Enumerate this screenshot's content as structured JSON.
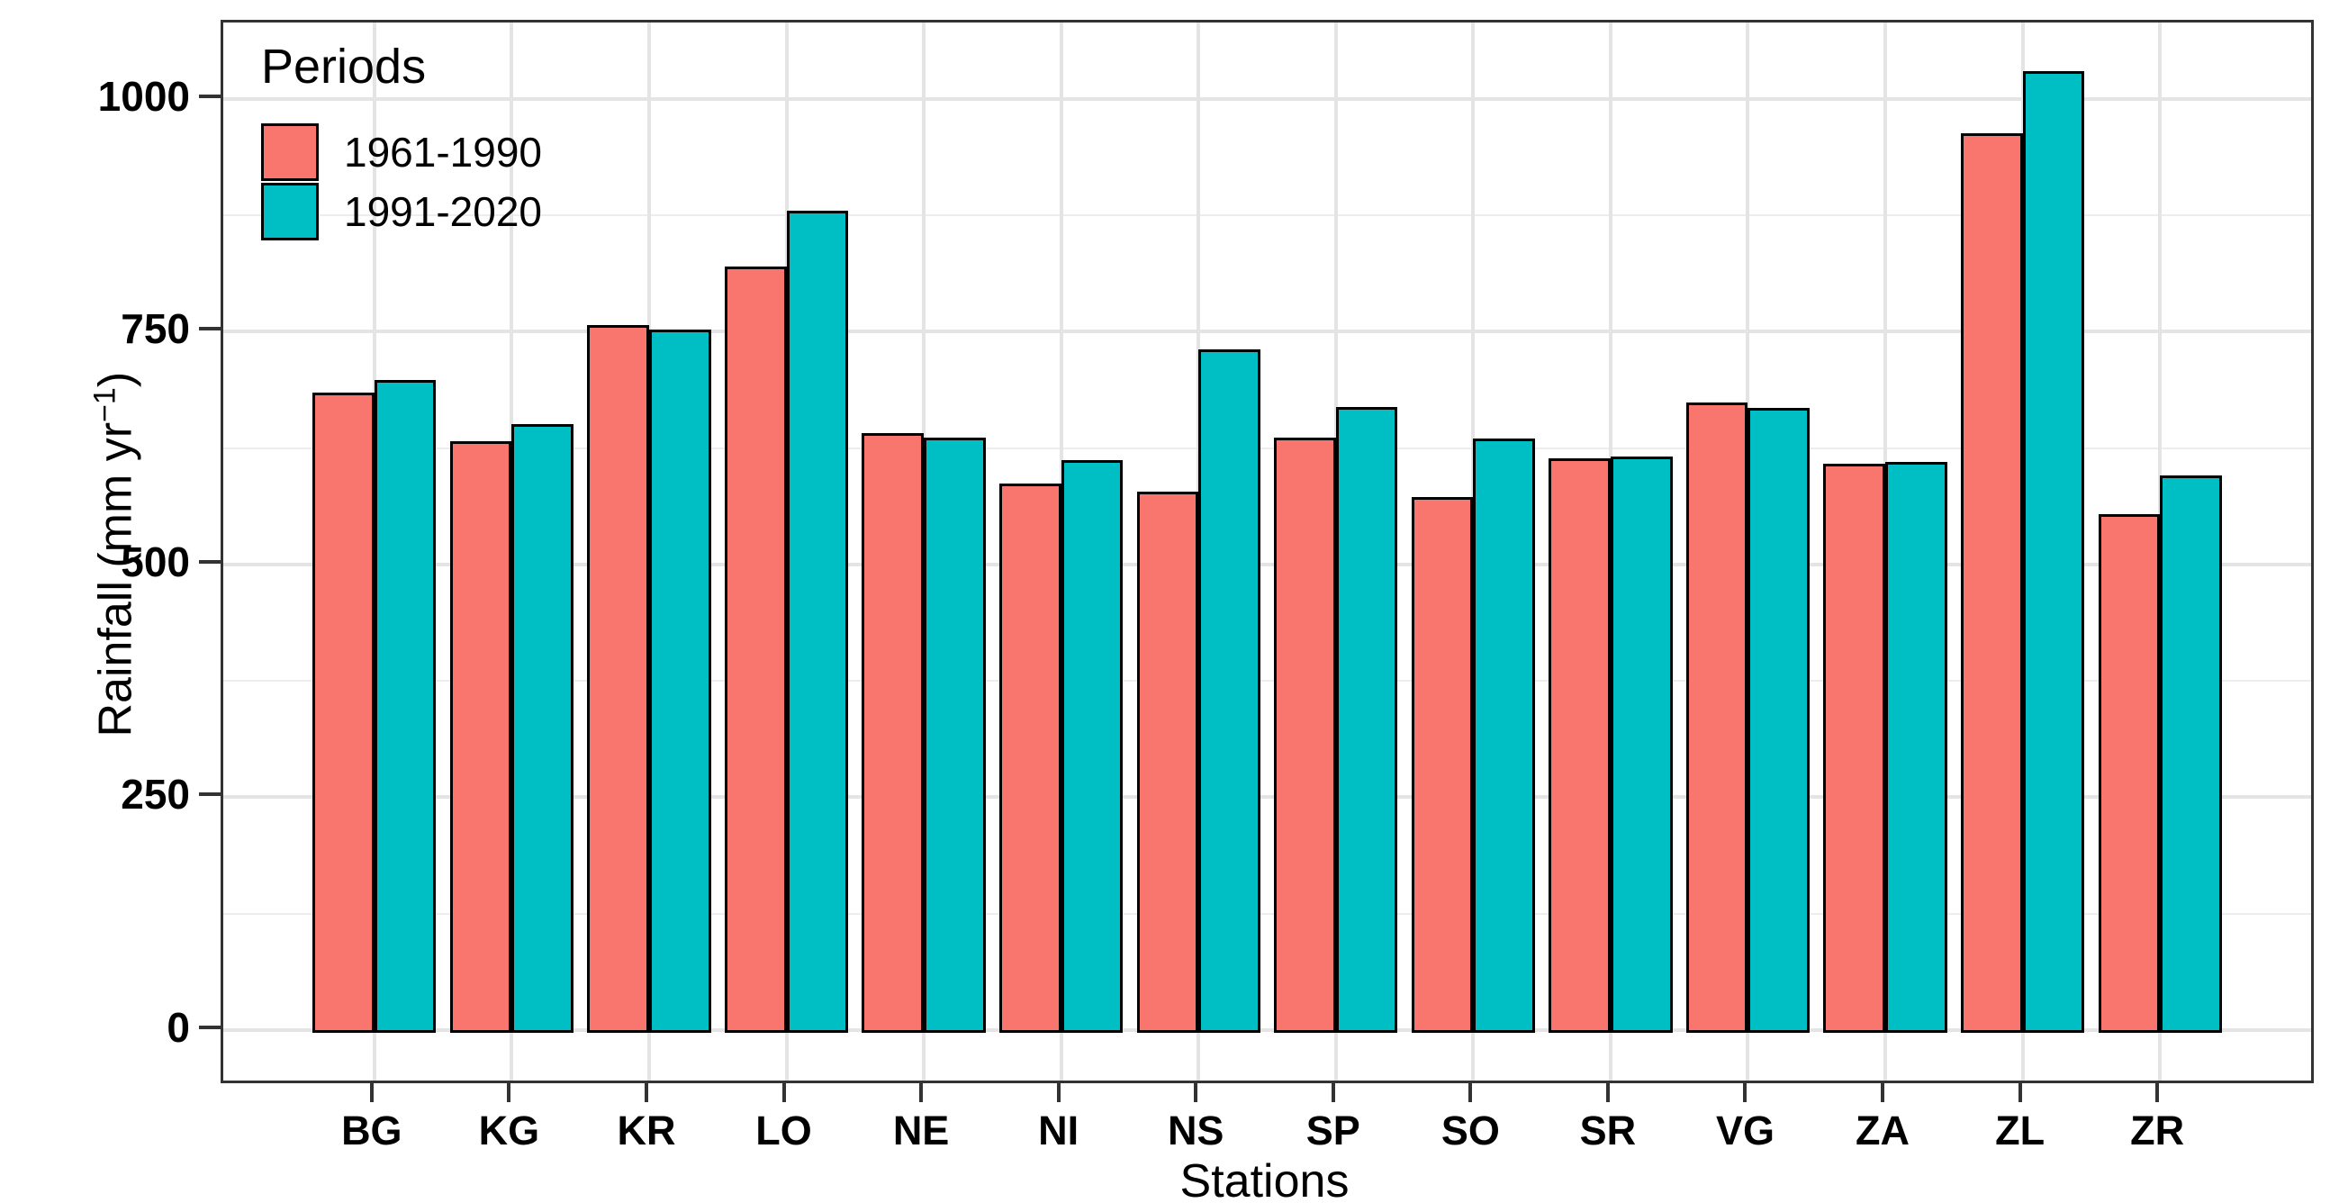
{
  "chart_data": {
    "type": "bar",
    "title": "",
    "xlabel": "Stations",
    "ylabel": "Rainfall (mm yr⁻¹)",
    "ylabel_parts": {
      "pre": "Rainfall (mm yr",
      "sup": "−1",
      "post": ")"
    },
    "legend_title": "Periods",
    "legend_position": "inside top-left",
    "grid": "on",
    "categories": [
      "BG",
      "KG",
      "KR",
      "LO",
      "NE",
      "NI",
      "NS",
      "SP",
      "SO",
      "SR",
      "VG",
      "ZA",
      "ZL",
      "ZR"
    ],
    "series": [
      {
        "name": "1961-1990",
        "color": "#F8766D",
        "values": [
          685,
          632,
          757,
          820,
          641,
          587,
          578,
          636,
          572,
          614,
          674,
          608,
          963,
          554
        ]
      },
      {
        "name": "1991-2020",
        "color": "#00BFC4",
        "values": [
          698,
          651,
          752,
          880,
          636,
          612,
          731,
          669,
          635,
          616,
          668,
          610,
          1030,
          596
        ]
      }
    ],
    "ylim": [
      0,
      1080
    ],
    "yticks": [
      0,
      250,
      500,
      750,
      1000
    ],
    "yticks_minor": [
      125,
      375,
      625,
      875
    ],
    "bar_outline_color": "#000000",
    "grid_color": "#e4e4e4"
  }
}
